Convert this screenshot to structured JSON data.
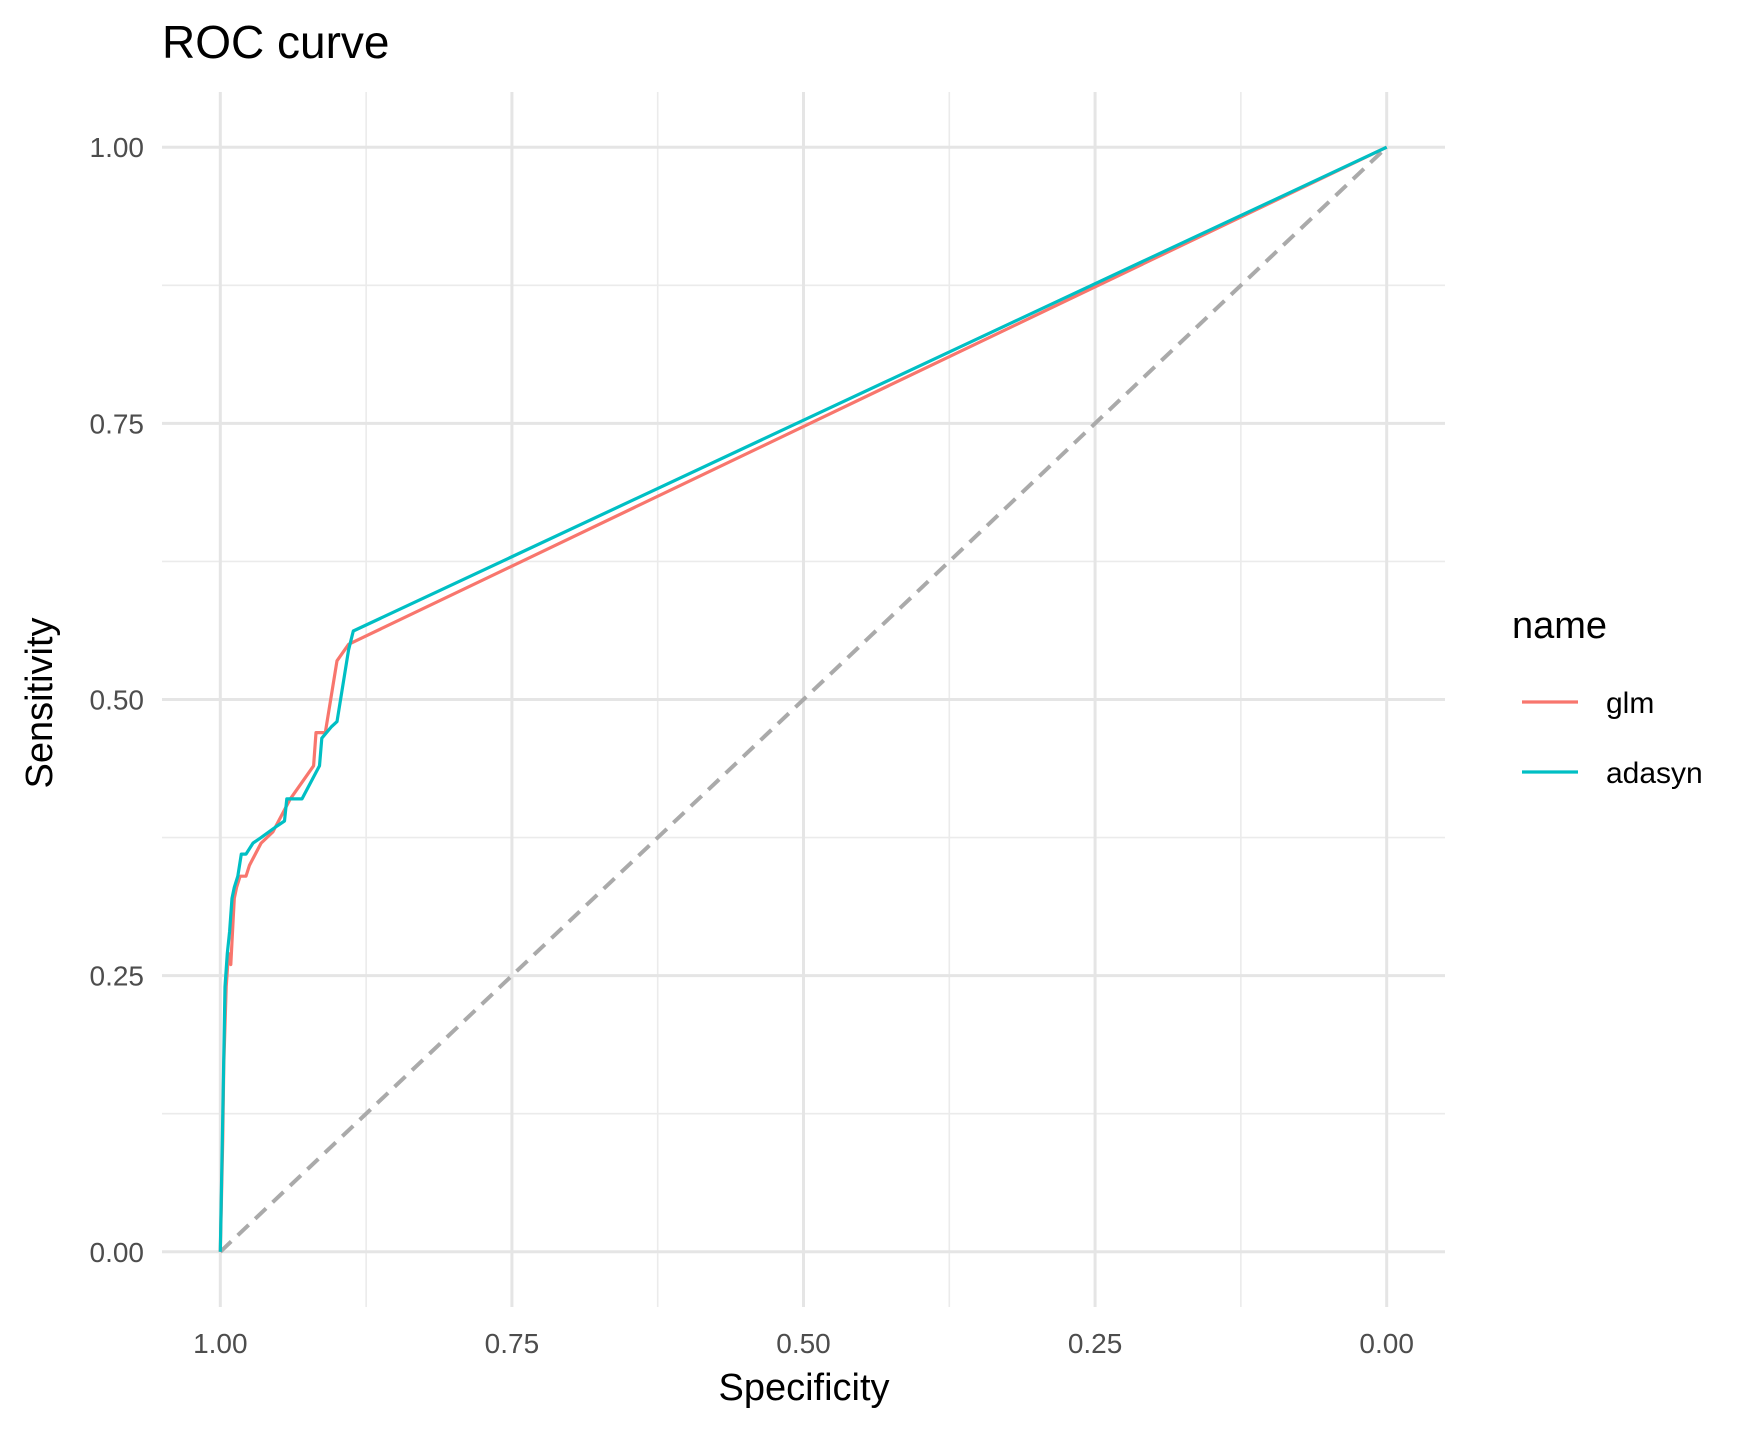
{
  "chart_data": {
    "type": "line",
    "title": "ROC curve",
    "xlabel": "Specificity",
    "ylabel": "Sensitivity",
    "x_reversed": true,
    "xlim": [
      1.05,
      -0.05
    ],
    "ylim": [
      -0.05,
      1.05
    ],
    "xticks": [
      1.0,
      0.75,
      0.5,
      0.25,
      0.0
    ],
    "xtick_labels": [
      "1.00",
      "0.75",
      "0.50",
      "0.25",
      "0.00"
    ],
    "yticks": [
      0.0,
      0.25,
      0.5,
      0.75,
      1.0
    ],
    "ytick_labels": [
      "0.00",
      "0.25",
      "0.50",
      "0.75",
      "1.00"
    ],
    "grid": true,
    "legend": {
      "title": "name",
      "position": "right"
    },
    "reference_line": {
      "style": "dashed",
      "color": "#aaaaaa",
      "x": [
        1.0,
        0.0
      ],
      "y": [
        0.0,
        1.0
      ]
    },
    "series": [
      {
        "name": "glm",
        "color": "#F8766D",
        "x": [
          1.0,
          0.998,
          0.997,
          0.995,
          0.993,
          0.991,
          0.989,
          0.988,
          0.986,
          0.983,
          0.978,
          0.975,
          0.965,
          0.955,
          0.94,
          0.92,
          0.918,
          0.91,
          0.9,
          0.89,
          0.0
        ],
        "y": [
          0.0,
          0.1,
          0.17,
          0.24,
          0.27,
          0.26,
          0.3,
          0.32,
          0.33,
          0.34,
          0.34,
          0.35,
          0.37,
          0.38,
          0.41,
          0.44,
          0.47,
          0.47,
          0.535,
          0.55,
          1.0
        ]
      },
      {
        "name": "adasyn",
        "color": "#00BFC4",
        "x": [
          1.0,
          0.998,
          0.996,
          0.994,
          0.992,
          0.99,
          0.988,
          0.985,
          0.982,
          0.978,
          0.972,
          0.965,
          0.952,
          0.945,
          0.943,
          0.93,
          0.915,
          0.913,
          0.905,
          0.9,
          0.89,
          0.886,
          0.0
        ],
        "y": [
          0.0,
          0.12,
          0.24,
          0.27,
          0.29,
          0.32,
          0.33,
          0.34,
          0.36,
          0.36,
          0.37,
          0.375,
          0.385,
          0.39,
          0.41,
          0.41,
          0.44,
          0.465,
          0.475,
          0.48,
          0.545,
          0.562,
          1.0
        ]
      }
    ]
  }
}
